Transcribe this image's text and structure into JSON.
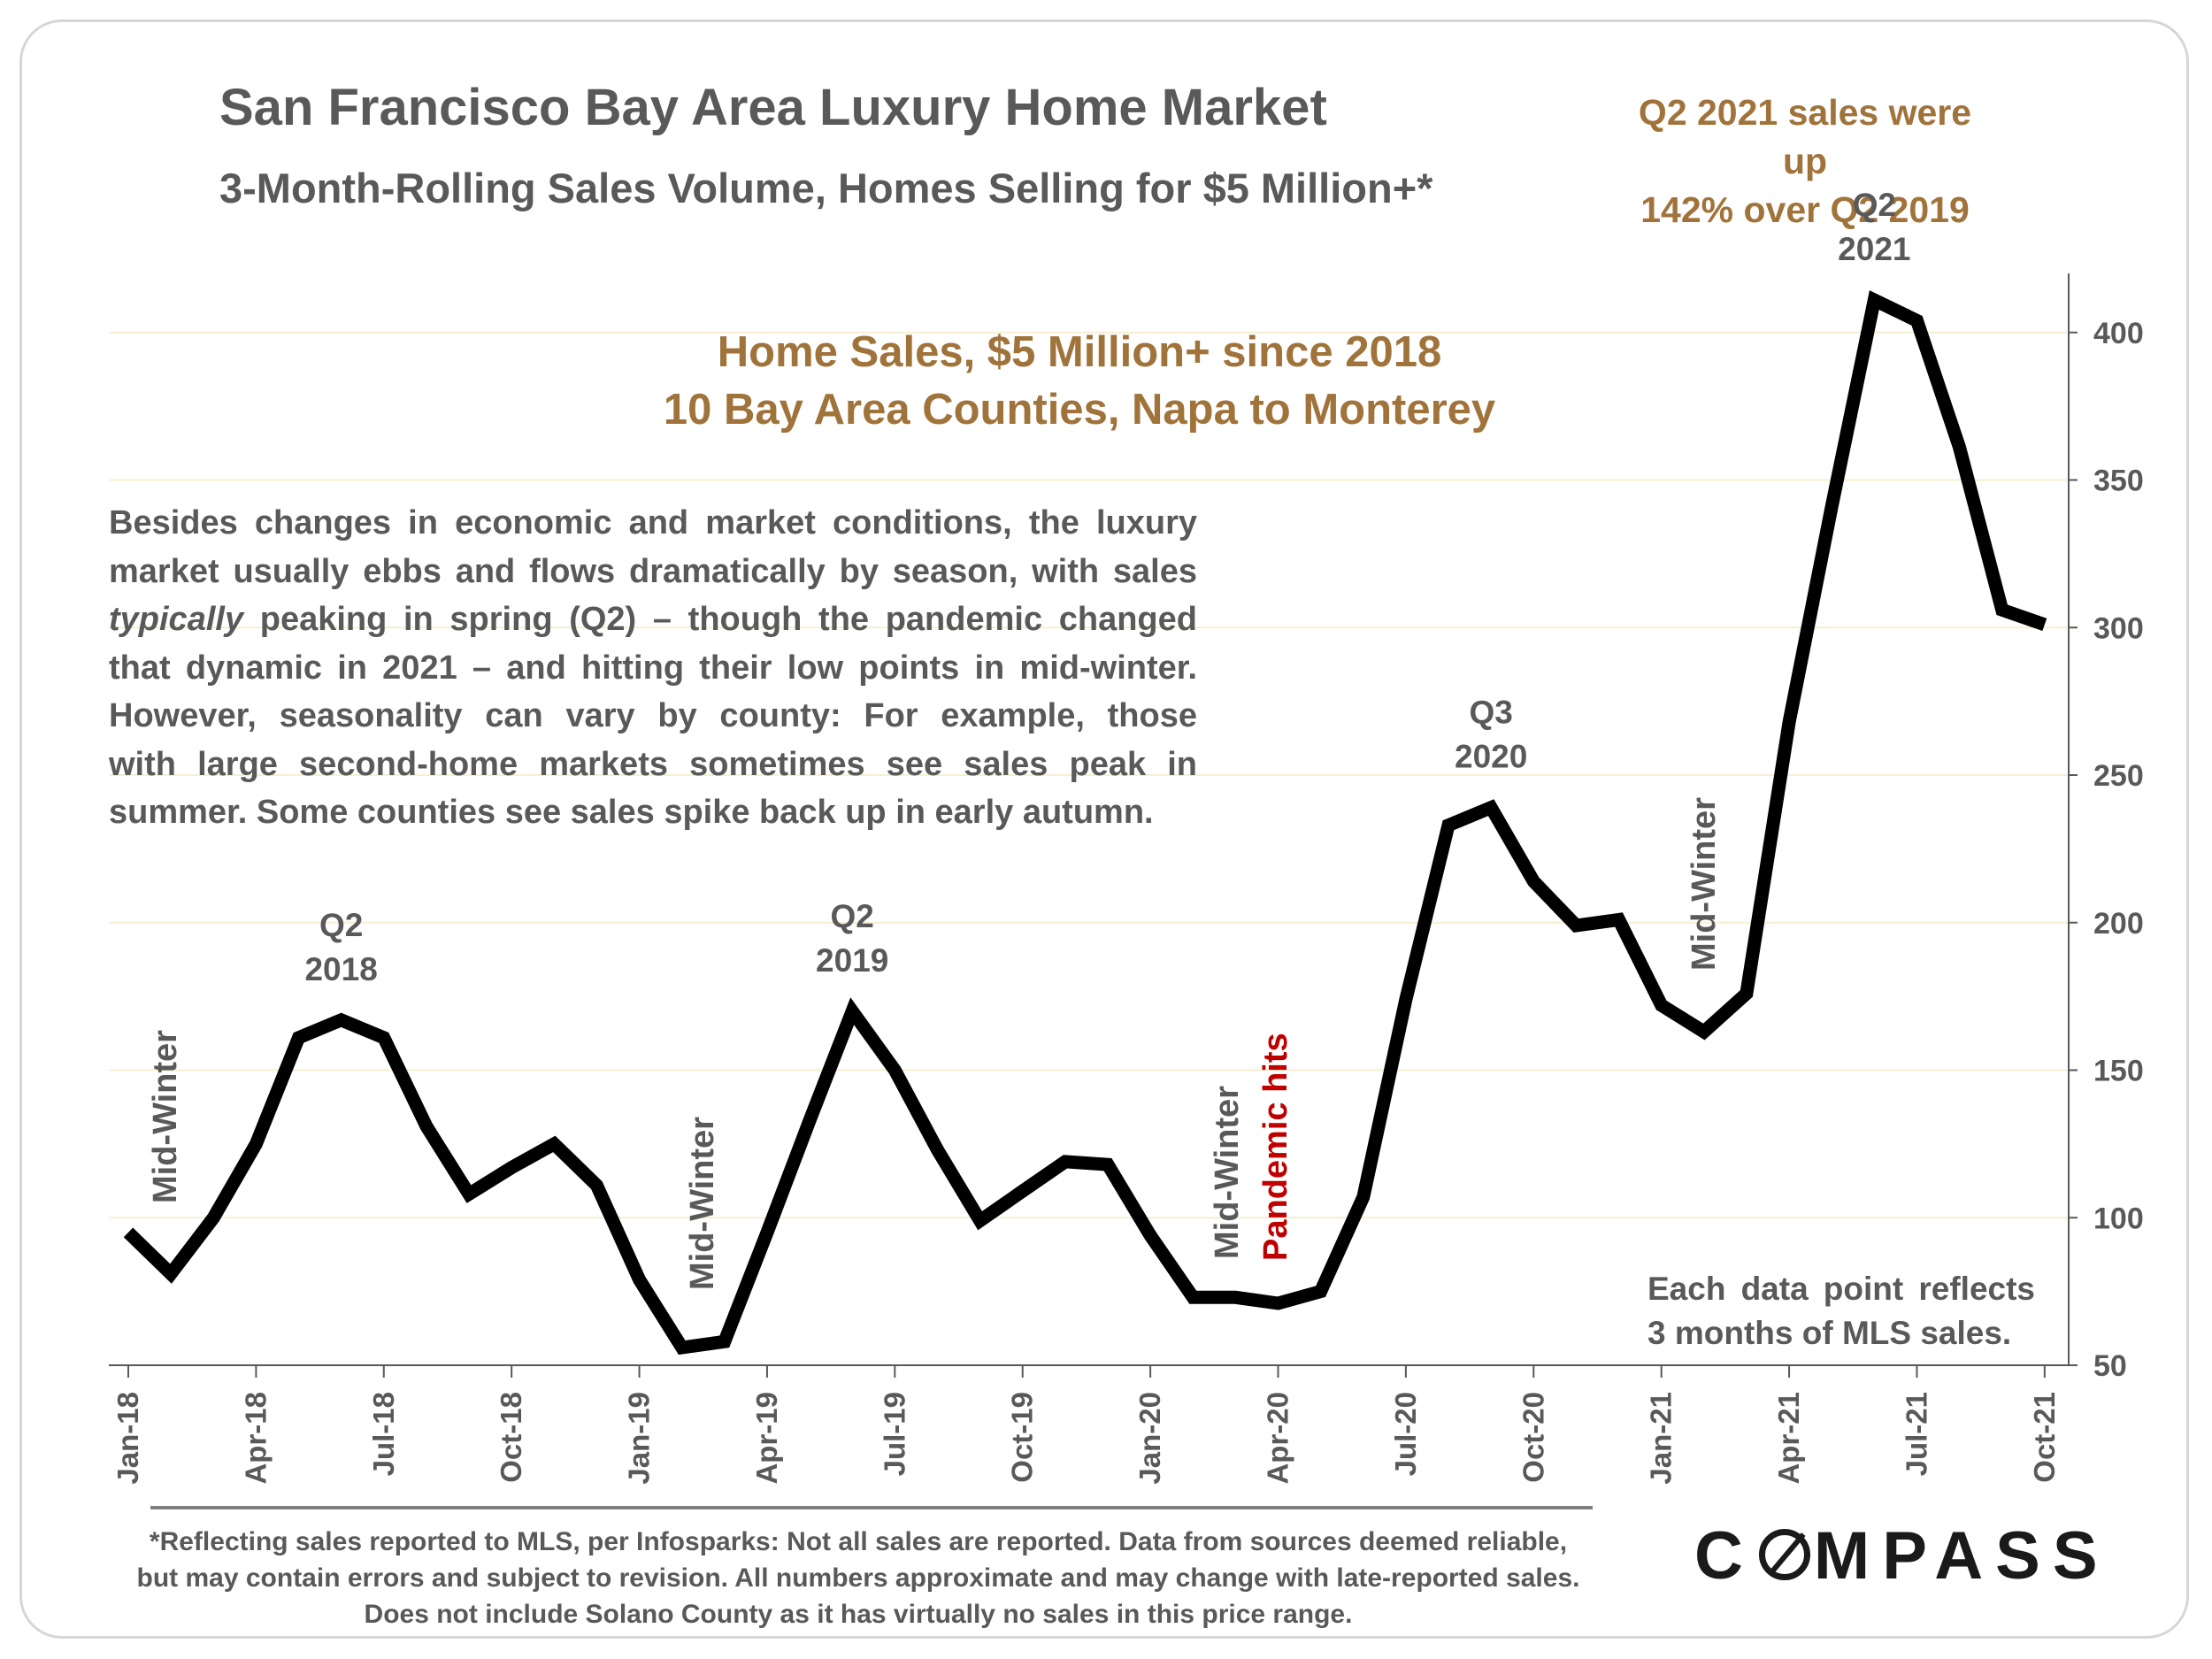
{
  "header": {
    "title": "San Francisco Bay Area Luxury Home Market",
    "subtitle": "3-Month-Rolling Sales Volume, Homes Selling for $5 Million+*"
  },
  "callout": {
    "line1": "Q2 2021 sales were up",
    "line2": "142% over Q2 2019"
  },
  "inner_title": {
    "line1": "Home Sales, $5 Million+ since 2018",
    "line2": "10 Bay Area Counties, Napa to Monterey"
  },
  "paragraph": {
    "l1": "Besides changes in economic and market conditions, the luxury",
    "l2": "market usually ebbs and flows dramatically by season, with sales",
    "l3a": "typically",
    "l3b": " peaking in spring (Q2) – though the pandemic changed",
    "l4": "that dynamic in 2021 – and hitting their low points in mid-winter.",
    "l5": "However, seasonality can vary by county: For example, those",
    "l6": "with large second-home markets sometimes see sales peak in",
    "l7": "summer. Some counties see sales spike back up in early autumn."
  },
  "note": {
    "line1": "Each data point reflects",
    "line2": "3 months of MLS sales."
  },
  "footnote": {
    "line1": "*Reflecting sales reported to MLS, per Infosparks: Not all sales are reported. Data from sources deemed reliable,",
    "line2": "but may contain errors and subject to revision. All numbers approximate and may change with late-reported sales.",
    "line3": "Does not include Solano County as it has virtually no sales in this price range."
  },
  "logo": {
    "pre": "C",
    "post": "MPASS"
  },
  "colors": {
    "line": "#000000",
    "text": "#595959",
    "accent": "#a0733b",
    "pandemic": "#c00000",
    "grid": "#f7efd2"
  },
  "chart_data": {
    "type": "line",
    "title": "Home Sales, $5 Million+ since 2018",
    "subtitle": "10 Bay Area Counties, Napa to Monterey",
    "y_axis_position": "right",
    "ylim": [
      50,
      420
    ],
    "yticks": [
      50,
      100,
      150,
      200,
      250,
      300,
      350,
      400
    ],
    "grid": true,
    "x_tick_labels": [
      "Jan-18",
      "Apr-18",
      "Jul-18",
      "Oct-18",
      "Jan-19",
      "Apr-19",
      "Jul-19",
      "Oct-19",
      "Jan-20",
      "Apr-20",
      "Jul-20",
      "Oct-20",
      "Jan-21",
      "Apr-21",
      "Jul-21",
      "Oct-21"
    ],
    "x": [
      "Jan-18",
      "Feb-18",
      "Mar-18",
      "Apr-18",
      "May-18",
      "Jun-18",
      "Jul-18",
      "Aug-18",
      "Sep-18",
      "Oct-18",
      "Nov-18",
      "Dec-18",
      "Jan-19",
      "Feb-19",
      "Mar-19",
      "Apr-19",
      "May-19",
      "Jun-19",
      "Jul-19",
      "Aug-19",
      "Sep-19",
      "Oct-19",
      "Nov-19",
      "Dec-19",
      "Jan-20",
      "Feb-20",
      "Mar-20",
      "Apr-20",
      "May-20",
      "Jun-20",
      "Jul-20",
      "Aug-20",
      "Sep-20",
      "Oct-20",
      "Nov-20",
      "Dec-20",
      "Jan-21",
      "Feb-21",
      "Mar-21",
      "Apr-21",
      "May-21",
      "Jun-21",
      "Jul-21",
      "Aug-21",
      "Sep-21",
      "Oct-21"
    ],
    "values": [
      95,
      81,
      100,
      125,
      161,
      167,
      161,
      131,
      108,
      117,
      125,
      111,
      79,
      56,
      58,
      95,
      133,
      170,
      150,
      123,
      99,
      109,
      119,
      118,
      94,
      73,
      73,
      71,
      75,
      107,
      174,
      233,
      239,
      214,
      199,
      201,
      172,
      163,
      176,
      268,
      341,
      411,
      404,
      361,
      306,
      301
    ],
    "annotations": [
      {
        "x": "Jun-18",
        "lines": [
          "Q2",
          "2018"
        ]
      },
      {
        "x": "Jun-19",
        "lines": [
          "Q2",
          "2019"
        ]
      },
      {
        "x": "Sep-20",
        "lines": [
          "Q3",
          "2020"
        ]
      },
      {
        "x": "Jun-21",
        "lines": [
          "Q2",
          "2021"
        ]
      }
    ],
    "vertical_labels": [
      {
        "x": "Jan-18",
        "text": "Mid-Winter"
      },
      {
        "x": "Feb-19",
        "text": "Mid-Winter"
      },
      {
        "x": "Mar-20",
        "text": "Mid-Winter"
      },
      {
        "x": "Apr-20",
        "text": "Pandemic hits",
        "color": "#c00000"
      },
      {
        "x": "Feb-21",
        "text": "Mid-Winter"
      }
    ]
  }
}
